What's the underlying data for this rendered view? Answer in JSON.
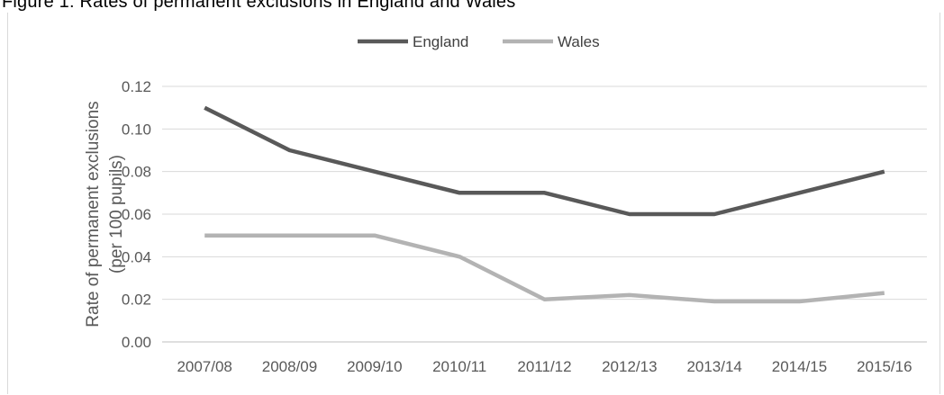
{
  "caption": "Figure 1: Rates of permanent exclusions in England and Wales",
  "chart_data": {
    "type": "line",
    "title": "",
    "xlabel": "",
    "ylabel_lines": [
      "Rate of permanent exclusions",
      "(per 100 pupils)"
    ],
    "categories": [
      "2007/08",
      "2008/09",
      "2009/10",
      "2010/11",
      "2011/12",
      "2012/13",
      "2013/14",
      "2014/15",
      "2015/16"
    ],
    "ylim": [
      0,
      0.12
    ],
    "yticks": [
      "0.00",
      "0.02",
      "0.04",
      "0.06",
      "0.08",
      "0.10",
      "0.12"
    ],
    "grid": true,
    "legend_position": "top-center",
    "series": [
      {
        "name": "England",
        "color": "#595959",
        "values": [
          0.11,
          0.09,
          0.08,
          0.07,
          0.07,
          0.06,
          0.06,
          0.07,
          0.08
        ]
      },
      {
        "name": "Wales",
        "color": "#b3b3b3",
        "values": [
          0.05,
          0.05,
          0.05,
          0.04,
          0.02,
          0.022,
          0.019,
          0.019,
          0.023
        ]
      }
    ]
  }
}
